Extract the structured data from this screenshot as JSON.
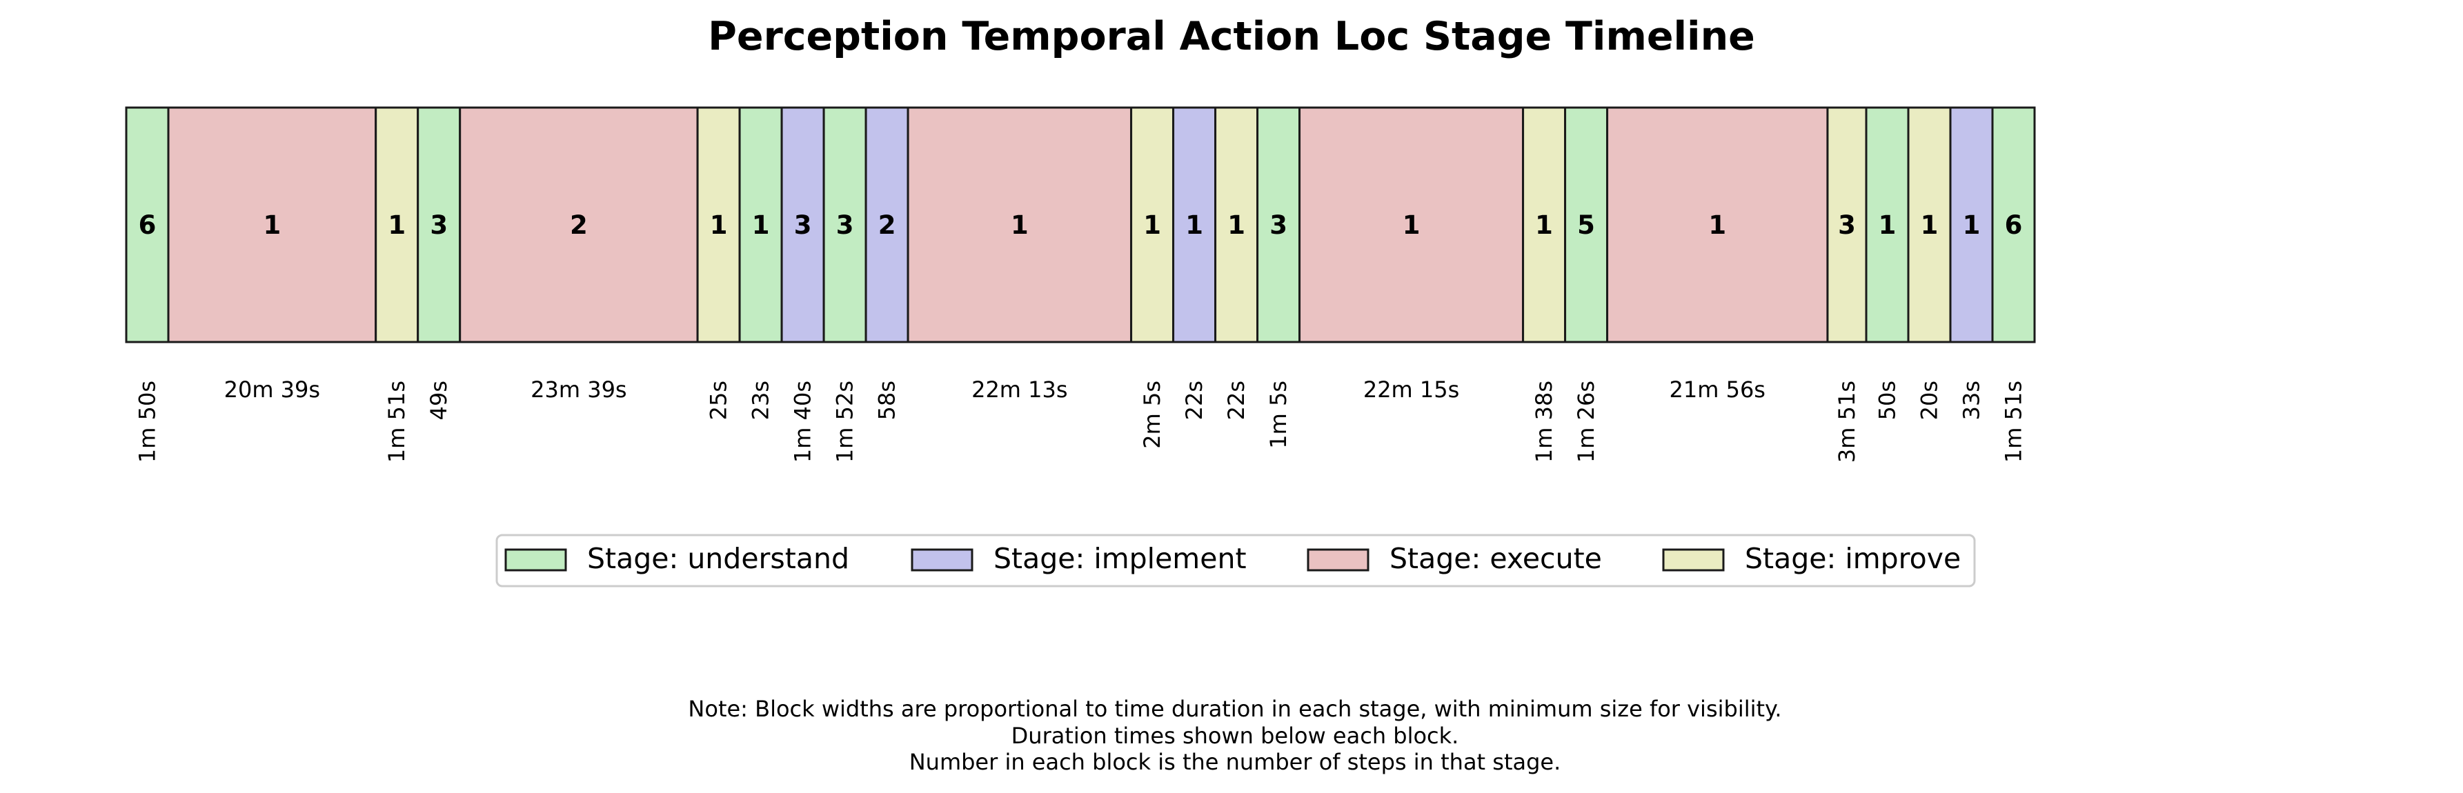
{
  "chart_data": {
    "type": "timeline",
    "title": "Perception Temporal Action Loc Stage Timeline",
    "stages": [
      {
        "key": "understand",
        "label": "Stage: understand",
        "color": "#c2ecc2"
      },
      {
        "key": "implement",
        "label": "Stage: implement",
        "color": "#c2c2ec"
      },
      {
        "key": "execute",
        "label": "Stage: execute",
        "color": "#eac2c2"
      },
      {
        "key": "improve",
        "label": "Stage: improve",
        "color": "#eaecc2"
      }
    ],
    "blocks": [
      {
        "stage": "understand",
        "steps": "6",
        "duration": "1m 50s",
        "seconds": 110
      },
      {
        "stage": "execute",
        "steps": "1",
        "duration": "20m 39s",
        "seconds": 1239
      },
      {
        "stage": "improve",
        "steps": "1",
        "duration": "1m 51s",
        "seconds": 111
      },
      {
        "stage": "understand",
        "steps": "3",
        "duration": "49s",
        "seconds": 49
      },
      {
        "stage": "execute",
        "steps": "2",
        "duration": "23m 39s",
        "seconds": 1419
      },
      {
        "stage": "improve",
        "steps": "1",
        "duration": "25s",
        "seconds": 25
      },
      {
        "stage": "understand",
        "steps": "1",
        "duration": "23s",
        "seconds": 23
      },
      {
        "stage": "implement",
        "steps": "3",
        "duration": "1m 40s",
        "seconds": 100
      },
      {
        "stage": "understand",
        "steps": "3",
        "duration": "1m 52s",
        "seconds": 112
      },
      {
        "stage": "implement",
        "steps": "2",
        "duration": "58s",
        "seconds": 58
      },
      {
        "stage": "execute",
        "steps": "1",
        "duration": "22m 13s",
        "seconds": 1333
      },
      {
        "stage": "improve",
        "steps": "1",
        "duration": "2m 5s",
        "seconds": 125
      },
      {
        "stage": "implement",
        "steps": "1",
        "duration": "22s",
        "seconds": 22
      },
      {
        "stage": "improve",
        "steps": "1",
        "duration": "22s",
        "seconds": 22
      },
      {
        "stage": "understand",
        "steps": "3",
        "duration": "1m 5s",
        "seconds": 65
      },
      {
        "stage": "execute",
        "steps": "1",
        "duration": "22m 15s",
        "seconds": 1335
      },
      {
        "stage": "improve",
        "steps": "1",
        "duration": "1m 38s",
        "seconds": 98
      },
      {
        "stage": "understand",
        "steps": "5",
        "duration": "1m 26s",
        "seconds": 86
      },
      {
        "stage": "execute",
        "steps": "1",
        "duration": "21m 56s",
        "seconds": 1316
      },
      {
        "stage": "improve",
        "steps": "3",
        "duration": "3m 51s",
        "seconds": 231
      },
      {
        "stage": "understand",
        "steps": "1",
        "duration": "50s",
        "seconds": 50
      },
      {
        "stage": "improve",
        "steps": "1",
        "duration": "20s",
        "seconds": 20
      },
      {
        "stage": "implement",
        "steps": "1",
        "duration": "33s",
        "seconds": 33
      },
      {
        "stage": "understand",
        "steps": "6",
        "duration": "1m 51s",
        "seconds": 111
      }
    ],
    "note_lines": [
      "Note: Block widths are proportional to time duration in each stage, with minimum size for visibility.",
      "Duration times shown below each block.",
      "Number in each block is the number of steps in that stage."
    ],
    "legend_position": "below timeline, centered",
    "grid": false
  }
}
